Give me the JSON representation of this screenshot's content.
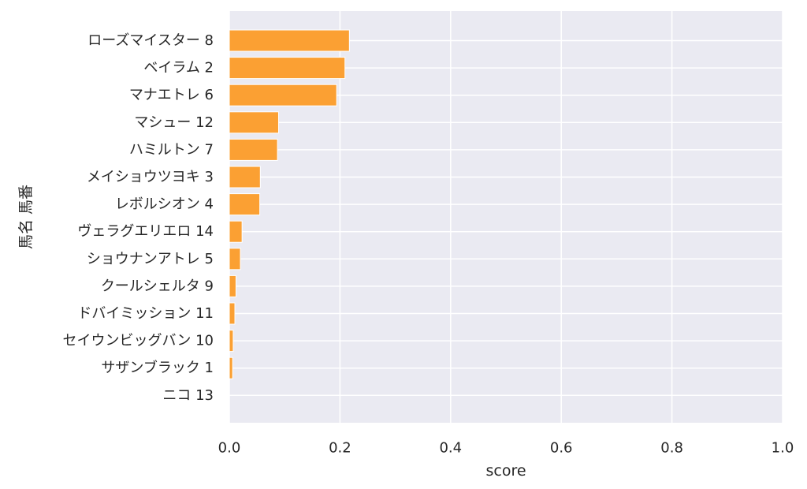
{
  "chart_data": {
    "type": "bar",
    "orientation": "horizontal",
    "categories": [
      "ローズマイスター 8",
      "ベイラム 2",
      "マナエトレ 6",
      "マシュー 12",
      "ハミルトン 7",
      "メイショウツヨキ 3",
      "レボルシオン 4",
      "ヴェラグエリエロ 14",
      "ショウナンアトレ 5",
      "クールシェルタ 9",
      "ドバイミッション 11",
      "セイウンビッグバン 10",
      "サザンブラック 1",
      "ニコ 13"
    ],
    "values": [
      0.217,
      0.209,
      0.194,
      0.089,
      0.087,
      0.056,
      0.055,
      0.023,
      0.02,
      0.012,
      0.01,
      0.007,
      0.006,
      0.0
    ],
    "xlabel": "score",
    "ylabel": "馬名 馬番",
    "xlim": [
      0,
      1.0
    ],
    "xticks": [
      "0.0",
      "0.2",
      "0.4",
      "0.6",
      "0.8",
      "1.0"
    ],
    "grid": true,
    "colors": {
      "bar": "#fba033",
      "plot_background": "#eaeaf2",
      "grid": "#ffffff",
      "text": "#262626"
    }
  }
}
